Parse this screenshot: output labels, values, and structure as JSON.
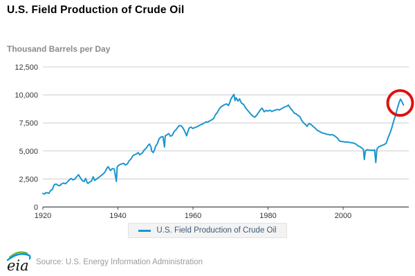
{
  "header": {
    "title": "U.S. Field Production of Crude Oil"
  },
  "legend": {
    "label": "U.S. Field Production of Crude Oil"
  },
  "footer": {
    "logo": "eia-logo",
    "source": "Source: U.S. Energy Information Administration"
  },
  "colors": {
    "line": "#1b95d0",
    "annotation": "#dd1111",
    "grid": "#cccccc",
    "axis": "#444444",
    "tick_text": "#333333"
  },
  "chart_data": {
    "type": "line",
    "title": "U.S. Field Production of Crude Oil",
    "xlabel": "",
    "ylabel": "Thousand Barrels per Day",
    "xlim": [
      1920,
      2017.5
    ],
    "ylim": [
      0,
      12500
    ],
    "xticks": [
      1920,
      1940,
      1960,
      1980,
      2000
    ],
    "yticks": [
      0,
      2500,
      5000,
      7500,
      10000,
      12500
    ],
    "ytick_labels": [
      "0",
      "2,500",
      "5,000",
      "7,500",
      "10,000",
      "12,500"
    ],
    "grid": "horizontal",
    "legend_position": "bottom",
    "annotation": {
      "type": "circle",
      "center": [
        2015.2,
        9280
      ],
      "color": "#dd1111",
      "highlights": "2015 production peak"
    },
    "series": [
      {
        "name": "U.S. Field Production of Crude Oil",
        "color": "#1b95d0",
        "unit": "thousand barrels per day",
        "points": [
          [
            1920,
            1210
          ],
          [
            1920.4,
            1150
          ],
          [
            1920.8,
            1280
          ],
          [
            1921.2,
            1270
          ],
          [
            1921.6,
            1220
          ],
          [
            1922,
            1450
          ],
          [
            1922.5,
            1560
          ],
          [
            1923,
            1980
          ],
          [
            1923.5,
            2050
          ],
          [
            1924,
            1940
          ],
          [
            1924.5,
            1900
          ],
          [
            1925,
            2060
          ],
          [
            1925.5,
            2150
          ],
          [
            1926,
            2070
          ],
          [
            1926.5,
            2230
          ],
          [
            1927,
            2400
          ],
          [
            1927.5,
            2550
          ],
          [
            1928,
            2420
          ],
          [
            1928.5,
            2490
          ],
          [
            1929,
            2700
          ],
          [
            1929.5,
            2880
          ],
          [
            1930,
            2600
          ],
          [
            1930.5,
            2350
          ],
          [
            1931,
            2270
          ],
          [
            1931.4,
            2550
          ],
          [
            1931.8,
            2180
          ],
          [
            1932,
            2100
          ],
          [
            1932.5,
            2230
          ],
          [
            1933,
            2340
          ],
          [
            1933.4,
            2700
          ],
          [
            1933.8,
            2370
          ],
          [
            1934,
            2420
          ],
          [
            1934.5,
            2550
          ],
          [
            1935,
            2660
          ],
          [
            1935.5,
            2800
          ],
          [
            1936,
            2940
          ],
          [
            1936.5,
            3100
          ],
          [
            1937,
            3420
          ],
          [
            1937.4,
            3600
          ],
          [
            1938,
            3250
          ],
          [
            1938.5,
            3430
          ],
          [
            1939,
            3400
          ],
          [
            1939.6,
            2280
          ],
          [
            1939.8,
            3550
          ],
          [
            1940,
            3660
          ],
          [
            1940.5,
            3780
          ],
          [
            1941,
            3840
          ],
          [
            1941.5,
            3900
          ],
          [
            1942,
            3750
          ],
          [
            1942.5,
            3850
          ],
          [
            1943,
            4130
          ],
          [
            1943.5,
            4300
          ],
          [
            1944,
            4580
          ],
          [
            1944.5,
            4680
          ],
          [
            1945,
            4750
          ],
          [
            1945.4,
            4850
          ],
          [
            1945.8,
            4650
          ],
          [
            1946,
            4720
          ],
          [
            1946.5,
            4820
          ],
          [
            1947,
            5090
          ],
          [
            1947.5,
            5230
          ],
          [
            1948,
            5480
          ],
          [
            1948.4,
            5620
          ],
          [
            1948.8,
            5350
          ],
          [
            1949,
            5000
          ],
          [
            1949.4,
            4850
          ],
          [
            1949.8,
            5150
          ],
          [
            1950,
            5400
          ],
          [
            1950.5,
            5650
          ],
          [
            1951,
            6100
          ],
          [
            1951.5,
            6250
          ],
          [
            1952,
            6280
          ],
          [
            1952.4,
            5350
          ],
          [
            1952.6,
            6350
          ],
          [
            1953,
            6420
          ],
          [
            1953.5,
            6550
          ],
          [
            1954,
            6320
          ],
          [
            1954.5,
            6400
          ],
          [
            1955,
            6750
          ],
          [
            1955.5,
            6900
          ],
          [
            1956,
            7130
          ],
          [
            1956.4,
            7280
          ],
          [
            1957,
            7210
          ],
          [
            1957.5,
            6950
          ],
          [
            1958,
            6600
          ],
          [
            1958.3,
            6350
          ],
          [
            1958.7,
            6800
          ],
          [
            1959,
            7050
          ],
          [
            1959.5,
            7130
          ],
          [
            1960,
            7000
          ],
          [
            1960.5,
            7100
          ],
          [
            1961,
            7150
          ],
          [
            1961.5,
            7250
          ],
          [
            1962,
            7330
          ],
          [
            1962.5,
            7400
          ],
          [
            1963,
            7500
          ],
          [
            1963.5,
            7600
          ],
          [
            1964,
            7580
          ],
          [
            1964.5,
            7700
          ],
          [
            1965,
            7780
          ],
          [
            1965.5,
            7900
          ],
          [
            1966,
            8250
          ],
          [
            1966.5,
            8450
          ],
          [
            1967,
            8750
          ],
          [
            1967.5,
            8950
          ],
          [
            1968,
            9050
          ],
          [
            1968.5,
            9150
          ],
          [
            1969,
            9200
          ],
          [
            1969.4,
            9050
          ],
          [
            1969.8,
            9300
          ],
          [
            1970,
            9550
          ],
          [
            1970.4,
            9800
          ],
          [
            1970.9,
            10050
          ],
          [
            1971.2,
            9500
          ],
          [
            1971.5,
            9750
          ],
          [
            1972,
            9450
          ],
          [
            1972.4,
            9650
          ],
          [
            1972.8,
            9350
          ],
          [
            1973,
            9250
          ],
          [
            1973.5,
            9150
          ],
          [
            1974,
            8850
          ],
          [
            1974.5,
            8650
          ],
          [
            1975,
            8450
          ],
          [
            1975.5,
            8250
          ],
          [
            1976,
            8100
          ],
          [
            1976.5,
            8020
          ],
          [
            1977,
            8200
          ],
          [
            1977.5,
            8450
          ],
          [
            1978,
            8700
          ],
          [
            1978.4,
            8820
          ],
          [
            1978.8,
            8600
          ],
          [
            1979,
            8500
          ],
          [
            1979.5,
            8620
          ],
          [
            1980,
            8560
          ],
          [
            1980.5,
            8640
          ],
          [
            1981,
            8520
          ],
          [
            1981.5,
            8600
          ],
          [
            1982,
            8650
          ],
          [
            1982.5,
            8720
          ],
          [
            1983,
            8650
          ],
          [
            1983.5,
            8750
          ],
          [
            1984,
            8850
          ],
          [
            1984.5,
            8950
          ],
          [
            1985,
            8980
          ],
          [
            1985.4,
            9100
          ],
          [
            1986,
            8800
          ],
          [
            1986.5,
            8600
          ],
          [
            1987,
            8380
          ],
          [
            1987.5,
            8300
          ],
          [
            1988,
            8180
          ],
          [
            1988.5,
            8050
          ],
          [
            1989,
            7700
          ],
          [
            1989.5,
            7500
          ],
          [
            1990,
            7350
          ],
          [
            1990.4,
            7200
          ],
          [
            1990.8,
            7400
          ],
          [
            1991,
            7450
          ],
          [
            1991.5,
            7350
          ],
          [
            1992,
            7200
          ],
          [
            1992.5,
            7050
          ],
          [
            1993,
            6870
          ],
          [
            1993.5,
            6780
          ],
          [
            1994,
            6690
          ],
          [
            1994.5,
            6600
          ],
          [
            1995,
            6570
          ],
          [
            1995.5,
            6500
          ],
          [
            1996,
            6480
          ],
          [
            1996.5,
            6430
          ],
          [
            1997,
            6460
          ],
          [
            1997.5,
            6400
          ],
          [
            1998,
            6280
          ],
          [
            1998.5,
            6150
          ],
          [
            1999,
            5900
          ],
          [
            1999.5,
            5850
          ],
          [
            2000,
            5830
          ],
          [
            2000.5,
            5790
          ],
          [
            2001,
            5810
          ],
          [
            2001.5,
            5770
          ],
          [
            2002,
            5750
          ],
          [
            2002.5,
            5720
          ],
          [
            2003,
            5690
          ],
          [
            2003.5,
            5600
          ],
          [
            2004,
            5450
          ],
          [
            2004.5,
            5380
          ],
          [
            2005,
            5250
          ],
          [
            2005.4,
            5150
          ],
          [
            2005.65,
            4230
          ],
          [
            2005.9,
            4900
          ],
          [
            2006,
            5050
          ],
          [
            2006.5,
            5120
          ],
          [
            2007,
            5070
          ],
          [
            2007.5,
            5080
          ],
          [
            2008,
            5050
          ],
          [
            2008.4,
            5100
          ],
          [
            2008.7,
            3970
          ],
          [
            2009,
            5150
          ],
          [
            2009.4,
            5350
          ],
          [
            2010,
            5450
          ],
          [
            2010.5,
            5520
          ],
          [
            2011,
            5580
          ],
          [
            2011.5,
            5700
          ],
          [
            2012,
            6200
          ],
          [
            2012.5,
            6600
          ],
          [
            2013,
            7100
          ],
          [
            2013.5,
            7700
          ],
          [
            2014,
            8200
          ],
          [
            2014.5,
            8850
          ],
          [
            2015,
            9400
          ],
          [
            2015.3,
            9620
          ],
          [
            2015.6,
            9450
          ],
          [
            2015.8,
            9300
          ],
          [
            2016.1,
            9100
          ]
        ]
      }
    ]
  }
}
